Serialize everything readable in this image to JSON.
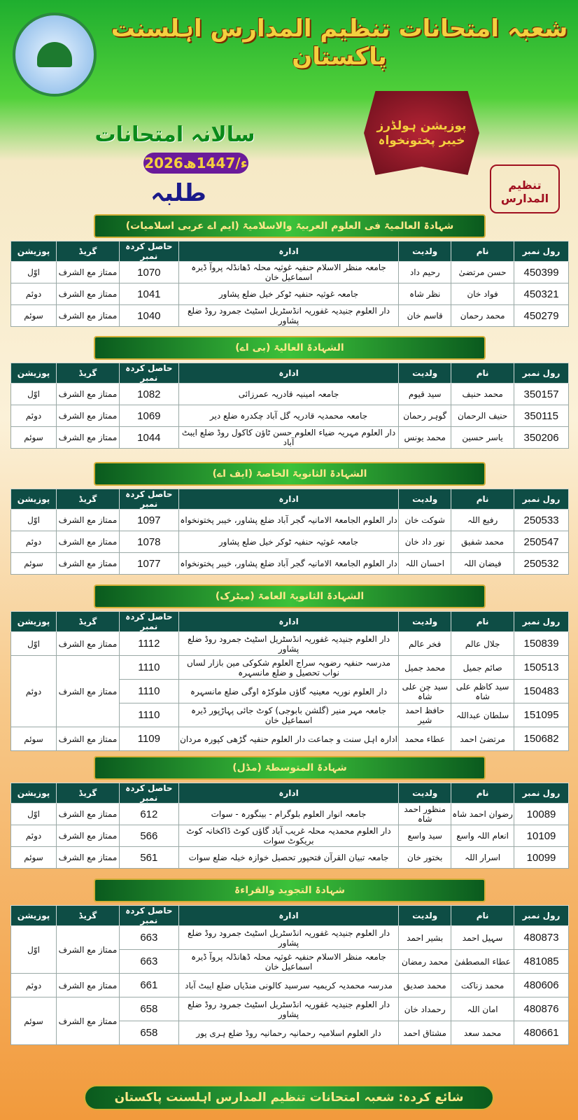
{
  "header": {
    "title": "شعبہ امتحانات تنظیم المدارس اہلسنت پاکستان",
    "exam": "سالانہ امتحانات",
    "year": "2026ء/1447ھ",
    "category": "طلبہ",
    "badge_line1": "پوزیشن ہولڈرز",
    "badge_line2": "خیبر پختونخواہ",
    "seal": "تنظیم المدارس",
    "logo_text": "تنظیم المدارس اہلسنت پاکستان"
  },
  "columns": [
    "رول نمبر",
    "نام",
    "ولدیت",
    "ادارہ",
    "حاصل کردہ نمبر",
    "گریڈ",
    "پوزیشن"
  ],
  "sections": [
    {
      "title": "شہادۃ العالمیۃ فی العلوم العربیۃ والاسلامیۃ (ایم اے عربی اسلامیات)",
      "rows": [
        [
          "450399",
          "حسن مرتضیٰ",
          "رحیم داد",
          "جامعہ منظر الاسلام حنفیہ غوثیہ محلہ ڈھانڈلہ پروآ ڈیرہ اسماعیل خان",
          "1070"
        ],
        [
          "450321",
          "فواد خان",
          "نظر شاہ",
          "جامعہ غوثیہ حنفیہ ٹوکر خیل ضلع پشاور",
          "1041"
        ],
        [
          "450279",
          "محمد رحمان",
          "قاسم خان",
          "دار العلوم جنیدیہ غفوریہ انڈسٹریل اسٹیٹ جمرود روڈ ضلع پشاور",
          "1040"
        ]
      ],
      "groups": [
        [
          "اوّل",
          "ممتاز مع الشرف",
          1
        ],
        [
          "دوئم",
          "ممتاز مع الشرف",
          1
        ],
        [
          "سوئم",
          "ممتاز مع الشرف",
          1
        ]
      ]
    },
    {
      "title": "الشہادۃ العالیۃ (بی اے)",
      "rows": [
        [
          "350157",
          "محمد حنیف",
          "سید قیوم",
          "جامعہ امینیہ قادریہ عمرزائی",
          "1082"
        ],
        [
          "350115",
          "حنیف الرحمان",
          "گوہر رحمان",
          "جامعہ محمدیہ قادریہ گل آباد چکدرہ ضلع دیر",
          "1069"
        ],
        [
          "350206",
          "یاسر حسین",
          "محمد یونس",
          "دار العلوم مہریہ ضیاء العلوم حسن ٹاؤن کاکول روڈ ضلع ایبٹ آباد",
          "1044"
        ]
      ],
      "groups": [
        [
          "اوّل",
          "ممتاز مع الشرف",
          1
        ],
        [
          "دوئم",
          "ممتاز مع الشرف",
          1
        ],
        [
          "سوئم",
          "ممتاز مع الشرف",
          1
        ]
      ]
    },
    {
      "title": "الشہادۃ الثانویۃ الخاصۃ (ایف اے)",
      "rows": [
        [
          "250533",
          "رفیع اللہ",
          "شوکت خان",
          "دار العلوم الجامعۃ الامانیہ گجر آباد ضلع پشاور، خیبر پختونخواہ",
          "1097"
        ],
        [
          "250547",
          "محمد شفیق",
          "نور داد خان",
          "جامعہ غوثیہ حنفیہ ٹوکر خیل ضلع پشاور",
          "1078"
        ],
        [
          "250532",
          "فیضان اللہ",
          "احسان اللہ",
          "دار العلوم الجامعۃ الامانیہ گجر آباد ضلع پشاور، خیبر پختونخواہ",
          "1077"
        ]
      ],
      "groups": [
        [
          "اوّل",
          "ممتاز مع الشرف",
          1
        ],
        [
          "دوئم",
          "ممتاز مع الشرف",
          1
        ],
        [
          "سوئم",
          "ممتاز مع الشرف",
          1
        ]
      ]
    },
    {
      "title": "الشہادۃ الثانویۃ العامۃ (میٹرک)",
      "rows": [
        [
          "150839",
          "جلال عالم",
          "فخر عالم",
          "دار العلوم جنیدیہ غفوریہ انڈسٹریل اسٹیٹ جمرود روڈ ضلع پشاور",
          "1112"
        ],
        [
          "150513",
          "صائم جمیل",
          "محمد جمیل",
          "مدرسہ حنفیہ رضویہ سراج العلوم شکوکی مین بازار لساں نواب تحصیل و ضلع مانسہرہ",
          "1110"
        ],
        [
          "150483",
          "سید کاظم علی شاہ",
          "سید چن علی شاہ",
          "دار العلوم نوریہ معینیہ گاؤں ملوکڑہ اوگی ضلع مانسہرہ",
          "1110"
        ],
        [
          "151095",
          "سلطان عبداللہ",
          "حافظ احمد شیر",
          "جامعہ مہر منیر (گلشن بابوجی) کوٹ جائی پہاڑپور ڈیرہ اسماعیل خان",
          "1110"
        ],
        [
          "150682",
          "مرتضیٰ احمد",
          "عطاء محمد",
          "ادارہ اہل سنت و جماعت دار العلوم حنفیہ گڑھی کپورہ مردان",
          "1109"
        ]
      ],
      "groups": [
        [
          "اوّل",
          "ممتاز مع الشرف",
          1
        ],
        [
          "دوئم",
          "ممتاز مع الشرف",
          3
        ],
        [
          "سوئم",
          "ممتاز مع الشرف",
          1
        ]
      ]
    },
    {
      "title": "شہادۃ المتوسطۃ (مڈل)",
      "rows": [
        [
          "10089",
          "رضوان احمد شاہ",
          "منظور احمد شاہ",
          "جامعہ انوار العلوم بلوگرام - بینگورہ - سوات",
          "612"
        ],
        [
          "10109",
          "انعام اللہ واسع",
          "سید واسع",
          "دار العلوم محمدیہ محلہ غریب آباد گاؤں کوٹ ڈاکخانہ کوٹ بریکوٹ سوات",
          "566"
        ],
        [
          "10099",
          "اسرار اللہ",
          "بختور خان",
          "جامعہ تبیان القرآن فتحپور تحصیل خوازہ خیلہ ضلع سوات",
          "561"
        ]
      ],
      "groups": [
        [
          "اوّل",
          "ممتاز مع الشرف",
          1
        ],
        [
          "دوئم",
          "ممتاز مع الشرف",
          1
        ],
        [
          "سوئم",
          "ممتاز مع الشرف",
          1
        ]
      ]
    },
    {
      "title": "شہادۃ التجوید والقراءۃ",
      "rows": [
        [
          "480873",
          "سہیل احمد",
          "بشیر احمد",
          "دار العلوم جنیدیہ غفوریہ انڈسٹریل اسٹیٹ جمرود روڈ ضلع پشاور",
          "663"
        ],
        [
          "481085",
          "عطاء المصطفیٰ",
          "محمد رمضان",
          "جامعہ منظر الاسلام حنفیہ غوثیہ محلہ ڈھانڈلہ پروآ ڈیرہ اسماعیل خان",
          "663"
        ],
        [
          "480606",
          "محمد زناکت",
          "محمد صدیق",
          "مدرسہ محمدیہ کریمیہ سرسید کالونی منڈیاں ضلع ایبٹ آباد",
          "661"
        ],
        [
          "480876",
          "امان اللہ",
          "رحمداد خان",
          "دار العلوم جنیدیہ غفوریہ انڈسٹریل اسٹیٹ جمرود روڈ ضلع پشاور",
          "658"
        ],
        [
          "480661",
          "محمد سعد",
          "مشتاق احمد",
          "دار العلوم اسلامیہ رحمانیہ رحمانیہ روڈ ضلع ہری پور",
          "658"
        ]
      ],
      "groups": [
        [
          "اوّل",
          "ممتاز مع الشرف",
          2
        ],
        [
          "دوئم",
          "ممتاز مع الشرف",
          1
        ],
        [
          "سوئم",
          "ممتاز مع الشرف",
          2
        ]
      ]
    }
  ],
  "footer": {
    "label": "شائع کردہ:",
    "publisher": "شعبہ امتحانات تنظیم المدارس اہلسنت پاکستان"
  }
}
